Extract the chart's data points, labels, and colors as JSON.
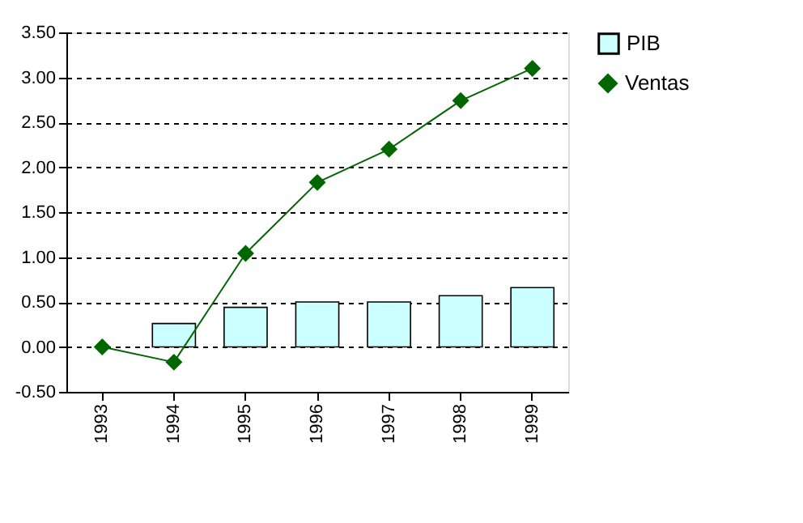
{
  "chart_data": {
    "type": "bar",
    "categories": [
      "1993",
      "1994",
      "1995",
      "1996",
      "1997",
      "1998",
      "1999"
    ],
    "series": [
      {
        "name": "PIB",
        "color": "#ccffff",
        "values": [
          null,
          0.26,
          0.44,
          0.5,
          0.5,
          0.57,
          0.66
        ]
      },
      {
        "name": "Ventas",
        "type": "line",
        "color": "#006600",
        "marker": "diamond",
        "values": [
          0,
          -0.17,
          1.04,
          1.83,
          2.2,
          2.74,
          3.1
        ]
      }
    ],
    "ylim": [
      -0.5,
      3.5
    ],
    "yticks": [
      {
        "value": -0.5,
        "label": "-0.50"
      },
      {
        "value": 0,
        "label": "0.00"
      },
      {
        "value": 0.5,
        "label": "0.50"
      },
      {
        "value": 1,
        "label": "1.00"
      },
      {
        "value": 1.5,
        "label": "1.50"
      },
      {
        "value": 2,
        "label": "2.00"
      },
      {
        "value": 2.5,
        "label": "2.50"
      },
      {
        "value": 3,
        "label": "3.00"
      },
      {
        "value": 3.5,
        "label": "3.50"
      }
    ],
    "grid": "y",
    "legend": "right"
  }
}
